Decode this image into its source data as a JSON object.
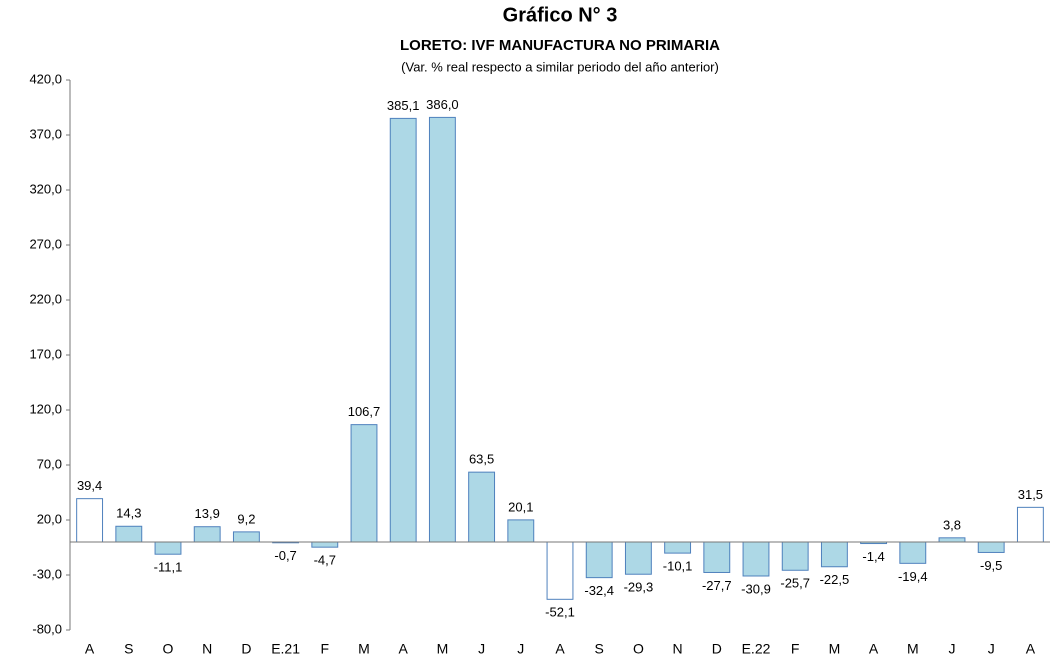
{
  "chart_data": {
    "type": "bar",
    "title": "Gráfico N° 3",
    "subtitle": "LORETO: IVF MANUFACTURA NO PRIMARIA",
    "note": "(Var. % real respecto a similar periodo del año anterior)",
    "categories": [
      "A",
      "S",
      "O",
      "N",
      "D",
      "E.21",
      "F",
      "M",
      "A",
      "M",
      "J",
      "J",
      "A",
      "S",
      "O",
      "N",
      "D",
      "E.22",
      "F",
      "M",
      "A",
      "M",
      "J",
      "J",
      "A"
    ],
    "values": [
      39.4,
      14.3,
      -11.1,
      13.9,
      9.2,
      -0.7,
      -4.7,
      106.7,
      385.1,
      386.0,
      63.5,
      20.1,
      -52.1,
      -32.4,
      -29.3,
      -10.1,
      -27.7,
      -30.9,
      -25.7,
      -22.5,
      -1.4,
      -19.4,
      3.8,
      -9.5,
      31.5
    ],
    "value_labels": [
      "39,4",
      "14,3",
      "-11,1",
      "13,9",
      "9,2",
      "-0,7",
      "-4,7",
      "106,7",
      "385,1",
      "386,0",
      "63,5",
      "20,1",
      "-52,1",
      "-32,4",
      "-29,3",
      "-10,1",
      "-27,7",
      "-30,9",
      "-25,7",
      "-22,5",
      "-1,4",
      "-19,4",
      "3,8",
      "-9,5",
      "31,5"
    ],
    "colors": [
      "#ffffff",
      "#add8e6",
      "#add8e6",
      "#add8e6",
      "#add8e6",
      "#add8e6",
      "#add8e6",
      "#add8e6",
      "#add8e6",
      "#add8e6",
      "#add8e6",
      "#add8e6",
      "#ffffff",
      "#add8e6",
      "#add8e6",
      "#add8e6",
      "#add8e6",
      "#add8e6",
      "#add8e6",
      "#add8e6",
      "#add8e6",
      "#add8e6",
      "#add8e6",
      "#add8e6",
      "#ffffff"
    ],
    "edge_color": "#4f81bd",
    "ylim": [
      -80,
      420
    ],
    "yticks": [
      {
        "value": -80,
        "label": "-80,0"
      },
      {
        "value": -30,
        "label": "-30,0"
      },
      {
        "value": 20,
        "label": "20,0"
      },
      {
        "value": 70,
        "label": "70,0"
      },
      {
        "value": 120,
        "label": "120,0"
      },
      {
        "value": 170,
        "label": "170,0"
      },
      {
        "value": 220,
        "label": "220,0"
      },
      {
        "value": 270,
        "label": "270,0"
      },
      {
        "value": 320,
        "label": "320,0"
      },
      {
        "value": 370,
        "label": "370,0"
      },
      {
        "value": 420,
        "label": "420,0"
      }
    ],
    "grid": false
  }
}
